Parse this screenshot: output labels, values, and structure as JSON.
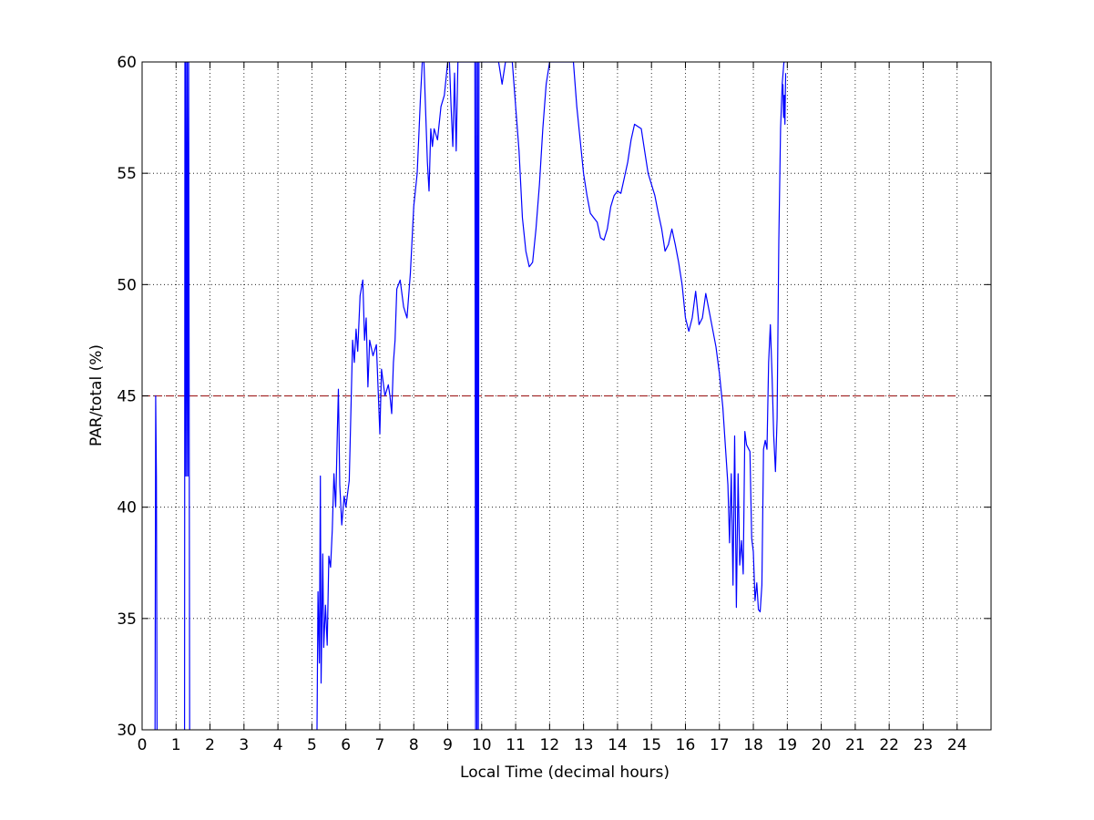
{
  "chart_data": {
    "type": "line",
    "title": "",
    "xlabel": "Local Time (decimal hours)",
    "ylabel": "PAR/total (%)",
    "xlim": [
      0,
      25
    ],
    "ylim": [
      30,
      60
    ],
    "xticks": [
      0,
      1,
      2,
      3,
      4,
      5,
      6,
      7,
      8,
      9,
      10,
      11,
      12,
      13,
      14,
      15,
      16,
      17,
      18,
      19,
      20,
      21,
      22,
      23,
      24
    ],
    "yticks": [
      30,
      35,
      40,
      45,
      50,
      55,
      60
    ],
    "grid": true,
    "colors": {
      "data": "#0000ff",
      "reference": "#a52a2a",
      "grid": "#000000"
    },
    "reference_line": {
      "y": 45,
      "x": [
        0,
        24
      ],
      "style": "dashed"
    },
    "series": [
      {
        "name": "",
        "segments": [
          [
            [
              0.38,
              30
            ],
            [
              0.4,
              45
            ],
            [
              0.42,
              41.4
            ],
            [
              0.44,
              30
            ]
          ],
          [
            [
              1.25,
              30
            ],
            [
              1.26,
              60
            ],
            [
              1.27,
              41.4
            ],
            [
              1.29,
              60
            ],
            [
              1.31,
              41.4
            ],
            [
              1.33,
              60
            ],
            [
              1.35,
              41.4
            ],
            [
              1.37,
              60
            ],
            [
              1.39,
              41.4
            ],
            [
              1.4,
              30
            ]
          ],
          [
            [
              5.15,
              30
            ],
            [
              5.18,
              36.2
            ],
            [
              5.22,
              33.0
            ],
            [
              5.25,
              41.4
            ],
            [
              5.27,
              32.1
            ],
            [
              5.32,
              37.9
            ],
            [
              5.35,
              33.7
            ],
            [
              5.4,
              35.6
            ],
            [
              5.45,
              33.8
            ],
            [
              5.5,
              37.8
            ],
            [
              5.55,
              37.3
            ],
            [
              5.6,
              39.0
            ],
            [
              5.65,
              41.5
            ],
            [
              5.7,
              40.0
            ],
            [
              5.75,
              43.5
            ],
            [
              5.78,
              45.3
            ],
            [
              5.82,
              41.0
            ],
            [
              5.88,
              39.2
            ],
            [
              5.95,
              40.5
            ],
            [
              6.0,
              40.0
            ],
            [
              6.1,
              41.2
            ],
            [
              6.2,
              47.5
            ],
            [
              6.25,
              46.5
            ],
            [
              6.3,
              48.0
            ],
            [
              6.35,
              47.0
            ],
            [
              6.42,
              49.5
            ],
            [
              6.5,
              50.2
            ],
            [
              6.55,
              47.5
            ],
            [
              6.6,
              48.5
            ],
            [
              6.65,
              45.4
            ],
            [
              6.7,
              47.5
            ],
            [
              6.8,
              46.8
            ],
            [
              6.9,
              47.3
            ],
            [
              7.0,
              43.3
            ],
            [
              7.05,
              46.2
            ],
            [
              7.15,
              45.0
            ],
            [
              7.25,
              45.5
            ],
            [
              7.3,
              45.0
            ],
            [
              7.35,
              44.2
            ],
            [
              7.4,
              46.5
            ],
            [
              7.45,
              47.5
            ],
            [
              7.5,
              49.8
            ],
            [
              7.6,
              50.2
            ],
            [
              7.7,
              49.0
            ],
            [
              7.8,
              48.5
            ],
            [
              7.9,
              50.5
            ],
            [
              8.0,
              53.5
            ],
            [
              8.1,
              55.0
            ],
            [
              8.2,
              58.5
            ],
            [
              8.25,
              60.0
            ],
            [
              8.3,
              60.0
            ],
            [
              8.4,
              55.5
            ],
            [
              8.45,
              54.2
            ],
            [
              8.5,
              57.0
            ],
            [
              8.55,
              56.2
            ],
            [
              8.6,
              57.0
            ],
            [
              8.7,
              56.5
            ],
            [
              8.8,
              58.0
            ],
            [
              8.9,
              58.5
            ],
            [
              9.0,
              60.0
            ],
            [
              9.05,
              60.0
            ],
            [
              9.1,
              58.0
            ],
            [
              9.15,
              56.2
            ],
            [
              9.2,
              59.5
            ],
            [
              9.25,
              56.0
            ],
            [
              9.3,
              60.0
            ],
            [
              9.4,
              60.0
            ],
            [
              9.5,
              60.0
            ],
            [
              9.6,
              60.0
            ],
            [
              9.7,
              60.0
            ],
            [
              9.8,
              60.0
            ],
            [
              9.82,
              30.0
            ],
            [
              9.84,
              60.0
            ],
            [
              9.86,
              30.0
            ],
            [
              9.88,
              60.0
            ],
            [
              9.9,
              30.0
            ],
            [
              9.92,
              60.0
            ],
            [
              10.0,
              60.0
            ],
            [
              10.5,
              60.0
            ],
            [
              10.6,
              59.0
            ],
            [
              10.7,
              60.0
            ],
            [
              10.8,
              60.0
            ],
            [
              10.9,
              60.0
            ],
            [
              11.0,
              58.0
            ],
            [
              11.1,
              56.0
            ],
            [
              11.2,
              53.0
            ],
            [
              11.3,
              51.5
            ],
            [
              11.4,
              50.8
            ],
            [
              11.5,
              51.0
            ],
            [
              11.6,
              52.5
            ],
            [
              11.7,
              54.5
            ],
            [
              11.8,
              57.0
            ],
            [
              11.9,
              59.0
            ],
            [
              12.0,
              60.0
            ],
            [
              12.2,
              60.0
            ],
            [
              12.4,
              60.0
            ],
            [
              12.6,
              60.0
            ],
            [
              12.7,
              60.0
            ],
            [
              12.8,
              58.0
            ],
            [
              12.9,
              56.5
            ],
            [
              13.0,
              55.0
            ],
            [
              13.1,
              54.0
            ],
            [
              13.2,
              53.2
            ],
            [
              13.3,
              53.0
            ],
            [
              13.4,
              52.8
            ],
            [
              13.5,
              52.1
            ],
            [
              13.6,
              52.0
            ],
            [
              13.7,
              52.5
            ],
            [
              13.8,
              53.5
            ],
            [
              13.9,
              54.0
            ],
            [
              14.0,
              54.2
            ],
            [
              14.1,
              54.1
            ],
            [
              14.2,
              54.8
            ],
            [
              14.3,
              55.5
            ],
            [
              14.4,
              56.5
            ],
            [
              14.5,
              57.2
            ],
            [
              14.6,
              57.1
            ],
            [
              14.7,
              57.0
            ],
            [
              14.8,
              56.0
            ],
            [
              14.9,
              55.0
            ],
            [
              15.0,
              54.5
            ],
            [
              15.1,
              54.0
            ],
            [
              15.2,
              53.2
            ],
            [
              15.3,
              52.5
            ],
            [
              15.4,
              51.5
            ],
            [
              15.5,
              51.8
            ],
            [
              15.6,
              52.5
            ],
            [
              15.7,
              51.8
            ],
            [
              15.8,
              51.0
            ],
            [
              15.9,
              50.0
            ],
            [
              16.0,
              48.5
            ],
            [
              16.1,
              47.9
            ],
            [
              16.2,
              48.5
            ],
            [
              16.3,
              49.7
            ],
            [
              16.4,
              48.2
            ],
            [
              16.5,
              48.5
            ],
            [
              16.6,
              49.6
            ],
            [
              16.7,
              48.8
            ],
            [
              16.8,
              48.0
            ],
            [
              16.9,
              47.2
            ],
            [
              17.0,
              46.0
            ],
            [
              17.1,
              44.5
            ],
            [
              17.2,
              42.2
            ],
            [
              17.25,
              41.0
            ],
            [
              17.3,
              38.4
            ],
            [
              17.35,
              41.5
            ],
            [
              17.4,
              36.5
            ],
            [
              17.45,
              43.2
            ],
            [
              17.5,
              35.5
            ],
            [
              17.55,
              41.5
            ],
            [
              17.6,
              37.4
            ],
            [
              17.65,
              38.5
            ],
            [
              17.7,
              37.0
            ],
            [
              17.75,
              43.4
            ],
            [
              17.8,
              42.8
            ],
            [
              17.9,
              42.5
            ],
            [
              17.95,
              38.6
            ],
            [
              18.0,
              38.0
            ],
            [
              18.05,
              35.8
            ],
            [
              18.1,
              36.6
            ],
            [
              18.15,
              35.4
            ],
            [
              18.2,
              35.3
            ],
            [
              18.25,
              36.5
            ],
            [
              18.3,
              42.6
            ],
            [
              18.35,
              43.0
            ],
            [
              18.4,
              42.6
            ],
            [
              18.45,
              46.5
            ],
            [
              18.5,
              48.2
            ],
            [
              18.55,
              46.0
            ],
            [
              18.6,
              43.2
            ],
            [
              18.65,
              41.6
            ],
            [
              18.7,
              44.0
            ],
            [
              18.75,
              52.0
            ],
            [
              18.8,
              57.0
            ],
            [
              18.85,
              59.0
            ],
            [
              18.9,
              60.0
            ],
            [
              18.95,
              60.0
            ]
          ],
          [
            [
              18.87,
              59.0
            ],
            [
              18.89,
              57.5
            ],
            [
              18.91,
              58.5
            ],
            [
              18.93,
              57.2
            ],
            [
              18.95,
              59.5
            ]
          ]
        ]
      }
    ]
  }
}
